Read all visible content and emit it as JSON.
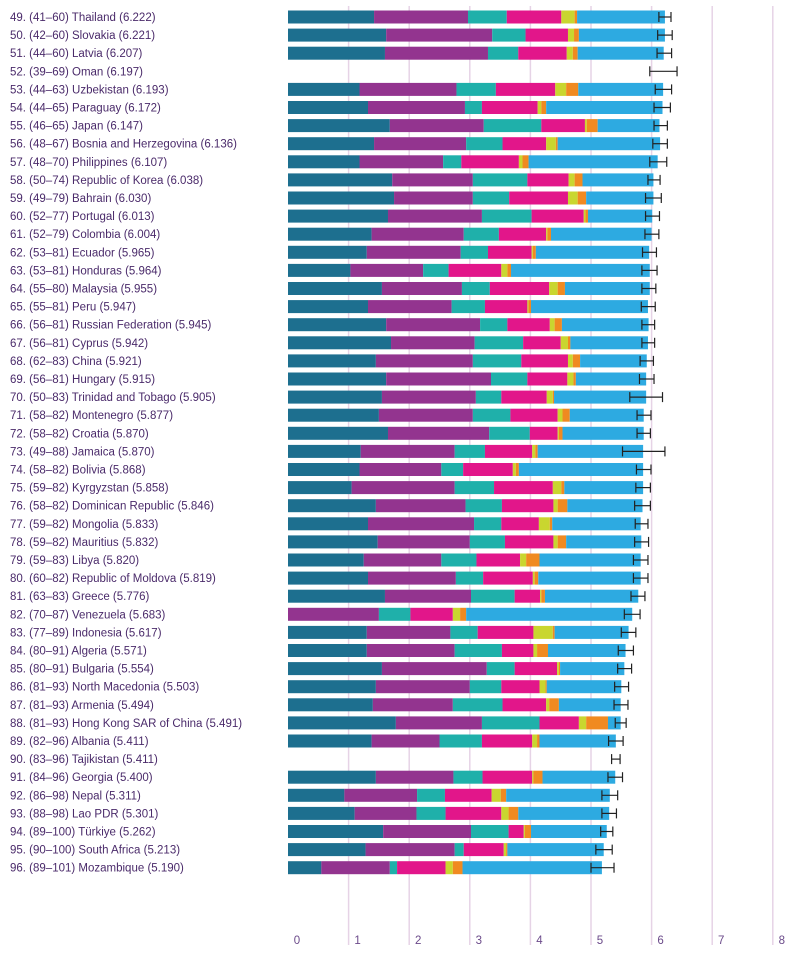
{
  "colors": {
    "seg1": "#1d6f8f",
    "seg2": "#93348f",
    "seg3": "#1fb0aa",
    "seg4": "#e2168a",
    "seg5": "#c9d62f",
    "seg6": "#f08a21",
    "seg7": "#2daae1",
    "gridline": "#e6d3e6",
    "label_text": "#4a2a6a",
    "error_bar": "#222222"
  },
  "chart_data": {
    "type": "bar",
    "orientation": "horizontal",
    "stacked": true,
    "xlim": [
      0,
      8
    ],
    "x_ticks": [
      "0",
      "1",
      "2",
      "3",
      "4",
      "5",
      "6",
      "7",
      "8"
    ],
    "grid": true,
    "rows": [
      {
        "label": "49.  (41–60) Thailand (6.222)",
        "score": 6.222,
        "ci": [
          6.12,
          6.32
        ],
        "segments": [
          1.42,
          1.55,
          0.64,
          0.9,
          0.22,
          0.04,
          1.45
        ]
      },
      {
        "label": "50.  (42–60) Slovakia (6.221)",
        "score": 6.221,
        "ci": [
          6.1,
          6.34
        ],
        "segments": [
          1.62,
          1.75,
          0.55,
          0.7,
          0.1,
          0.08,
          1.42
        ]
      },
      {
        "label": "51.  (44–60) Latvia (6.207)",
        "score": 6.207,
        "ci": [
          6.09,
          6.33
        ],
        "segments": [
          1.6,
          1.7,
          0.5,
          0.8,
          0.1,
          0.08,
          1.42
        ]
      },
      {
        "label": "52.  (39–69) Oman (6.197)",
        "score": 6.197,
        "ci": [
          5.97,
          6.42
        ],
        "segments": []
      },
      {
        "label": "53.  (44–63) Uzbekistan (6.193)",
        "score": 6.193,
        "ci": [
          6.06,
          6.33
        ],
        "segments": [
          1.18,
          1.6,
          0.65,
          0.98,
          0.18,
          0.2,
          1.4
        ]
      },
      {
        "label": "54.  (44–65) Paraguay (6.172)",
        "score": 6.172,
        "ci": [
          6.04,
          6.31
        ],
        "segments": [
          1.32,
          1.6,
          0.28,
          0.92,
          0.06,
          0.08,
          1.92
        ]
      },
      {
        "label": "55.  (46–65) Japan (6.147)",
        "score": 6.147,
        "ci": [
          6.04,
          6.26
        ],
        "segments": [
          1.68,
          1.55,
          0.95,
          0.72,
          0.03,
          0.18,
          1.02
        ]
      },
      {
        "label": "56.  (48–67) Bosnia and Herzegovina (6.136)",
        "score": 6.136,
        "ci": [
          6.02,
          6.26
        ],
        "segments": [
          1.42,
          1.52,
          0.6,
          0.72,
          0.16,
          0.03,
          1.69
        ]
      },
      {
        "label": "57.  (48–70) Philippines (6.107)",
        "score": 6.107,
        "ci": [
          5.97,
          6.25
        ],
        "segments": [
          1.18,
          1.38,
          0.3,
          0.95,
          0.06,
          0.1,
          2.13
        ]
      },
      {
        "label": "58.  (50–74) Republic of Korea (6.038)",
        "score": 6.038,
        "ci": [
          5.94,
          6.14
        ],
        "segments": [
          1.72,
          1.33,
          0.9,
          0.68,
          0.1,
          0.13,
          1.17
        ]
      },
      {
        "label": "59.  (49–79) Bahrain (6.030)",
        "score": 6.03,
        "ci": [
          5.9,
          6.16
        ],
        "segments": [
          1.75,
          1.3,
          0.6,
          0.97,
          0.16,
          0.14,
          1.11
        ]
      },
      {
        "label": "60.  (52–77) Portugal (6.013)",
        "score": 6.013,
        "ci": [
          5.9,
          6.13
        ],
        "segments": [
          1.65,
          1.55,
          0.82,
          0.86,
          0.03,
          0.04,
          1.06
        ]
      },
      {
        "label": "61.  (52–79) Colombia (6.004)",
        "score": 6.004,
        "ci": [
          5.89,
          6.12
        ],
        "segments": [
          1.38,
          1.52,
          0.58,
          0.78,
          0.02,
          0.06,
          1.66
        ]
      },
      {
        "label": "62.  (53–81) Ecuador (5.965)",
        "score": 5.965,
        "ci": [
          5.85,
          6.08
        ],
        "segments": [
          1.3,
          1.55,
          0.45,
          0.72,
          0.02,
          0.05,
          1.87
        ]
      },
      {
        "label": "63.  (53–81) Honduras (5.964)",
        "score": 5.964,
        "ci": [
          5.84,
          6.09
        ],
        "segments": [
          1.03,
          1.2,
          0.42,
          0.87,
          0.1,
          0.06,
          2.29
        ]
      },
      {
        "label": "64.  (55–80) Malaysia (5.955)",
        "score": 5.955,
        "ci": [
          5.84,
          6.07
        ],
        "segments": [
          1.55,
          1.32,
          0.46,
          0.98,
          0.14,
          0.12,
          1.4
        ]
      },
      {
        "label": "65.  (55–81) Peru (5.947)",
        "score": 5.947,
        "ci": [
          5.83,
          6.06
        ],
        "segments": [
          1.32,
          1.38,
          0.55,
          0.7,
          0.02,
          0.04,
          1.93
        ]
      },
      {
        "label": "66.  (56–81) Russian Federation (5.945)",
        "score": 5.945,
        "ci": [
          5.84,
          6.05
        ],
        "segments": [
          1.62,
          1.55,
          0.45,
          0.7,
          0.08,
          0.12,
          1.43
        ]
      },
      {
        "label": "67.  (56–81) Cyprus (5.942)",
        "score": 5.942,
        "ci": [
          5.84,
          6.05
        ],
        "segments": [
          1.7,
          1.38,
          0.8,
          0.62,
          0.12,
          0.04,
          1.28
        ]
      },
      {
        "label": "68.  (62–83) China (5.921)",
        "score": 5.921,
        "ci": [
          5.81,
          6.03
        ],
        "segments": [
          1.45,
          1.6,
          0.8,
          0.77,
          0.08,
          0.12,
          1.1
        ]
      },
      {
        "label": "69.  (56–81) Hungary (5.915)",
        "score": 5.915,
        "ci": [
          5.8,
          6.04
        ],
        "segments": [
          1.62,
          1.73,
          0.6,
          0.66,
          0.1,
          0.04,
          1.16
        ]
      },
      {
        "label": "70.  (50–83) Trinidad and Tobago (5.905)",
        "score": 5.905,
        "ci": [
          5.64,
          6.18
        ],
        "segments": [
          1.55,
          1.55,
          0.42,
          0.75,
          0.1,
          0.02,
          1.52
        ]
      },
      {
        "label": "71.  (58–82) Montenegro (5.877)",
        "score": 5.877,
        "ci": [
          5.76,
          5.99
        ],
        "segments": [
          1.5,
          1.55,
          0.62,
          0.78,
          0.08,
          0.12,
          1.22
        ]
      },
      {
        "label": "72.  (58–82) Croatia (5.870)",
        "score": 5.87,
        "ci": [
          5.76,
          5.98
        ],
        "segments": [
          1.65,
          1.67,
          0.67,
          0.46,
          0.02,
          0.06,
          1.34
        ]
      },
      {
        "label": "73.  (49–88) Jamaica (5.870)",
        "score": 5.87,
        "ci": [
          5.52,
          6.22
        ],
        "segments": [
          1.2,
          1.55,
          0.5,
          0.78,
          0.05,
          0.04,
          1.74
        ]
      },
      {
        "label": "74.  (58–82) Bolivia (5.868)",
        "score": 5.868,
        "ci": [
          5.75,
          5.99
        ],
        "segments": [
          1.18,
          1.35,
          0.36,
          0.82,
          0.05,
          0.05,
          2.05
        ]
      },
      {
        "label": "75.  (59–82) Kyrgyzstan (5.858)",
        "score": 5.858,
        "ci": [
          5.74,
          5.98
        ],
        "segments": [
          1.05,
          1.7,
          0.65,
          0.97,
          0.14,
          0.05,
          1.3
        ]
      },
      {
        "label": "76.  (58–82) Dominican Republic (5.846)",
        "score": 5.846,
        "ci": [
          5.72,
          5.98
        ],
        "segments": [
          1.45,
          1.48,
          0.6,
          0.85,
          0.07,
          0.16,
          1.24
        ]
      },
      {
        "label": "77.  (59–82) Mongolia (5.833)",
        "score": 5.833,
        "ci": [
          5.73,
          5.94
        ],
        "segments": [
          1.32,
          1.75,
          0.45,
          0.62,
          0.18,
          0.04,
          1.46
        ]
      },
      {
        "label": "78.  (59–82) Mauritius (5.832)",
        "score": 5.832,
        "ci": [
          5.72,
          5.95
        ],
        "segments": [
          1.48,
          1.52,
          0.58,
          0.8,
          0.07,
          0.14,
          1.24
        ]
      },
      {
        "label": "79.  (59–83) Libya (5.820)",
        "score": 5.82,
        "ci": [
          5.7,
          5.94
        ],
        "segments": [
          1.25,
          1.28,
          0.58,
          0.72,
          0.1,
          0.22,
          1.67
        ]
      },
      {
        "label": "80.  (60–82) Republic of Moldova (5.819)",
        "score": 5.819,
        "ci": [
          5.7,
          5.94
        ],
        "segments": [
          1.32,
          1.45,
          0.45,
          0.82,
          0.03,
          0.06,
          1.69
        ]
      },
      {
        "label": "81.  (63–83) Greece (5.776)",
        "score": 5.776,
        "ci": [
          5.66,
          5.89
        ],
        "segments": [
          1.6,
          1.42,
          0.72,
          0.42,
          0.02,
          0.06,
          1.54
        ]
      },
      {
        "label": "82.  (70–87) Venezuela (5.683)",
        "score": 5.683,
        "ci": [
          5.55,
          5.81
        ],
        "segments": [
          0.0,
          1.5,
          0.52,
          0.7,
          0.12,
          0.1,
          2.74
        ]
      },
      {
        "label": "83.  (77–89) Indonesia (5.617)",
        "score": 5.617,
        "ci": [
          5.5,
          5.74
        ],
        "segments": [
          1.3,
          1.38,
          0.45,
          0.92,
          0.32,
          0.03,
          1.22
        ]
      },
      {
        "label": "84.  (80–91) Algeria (5.571)",
        "score": 5.571,
        "ci": [
          5.45,
          5.7
        ],
        "segments": [
          1.3,
          1.45,
          0.78,
          0.52,
          0.06,
          0.18,
          1.28
        ]
      },
      {
        "label": "85.  (80–91) Bulgaria (5.554)",
        "score": 5.554,
        "ci": [
          5.44,
          5.67
        ],
        "segments": [
          1.55,
          1.73,
          0.46,
          0.7,
          0.03,
          0.02,
          1.06
        ]
      },
      {
        "label": "86.  (81–93) North Macedonia (5.503)",
        "score": 5.503,
        "ci": [
          5.39,
          5.62
        ],
        "segments": [
          1.45,
          1.55,
          0.52,
          0.63,
          0.1,
          0.02,
          1.23
        ]
      },
      {
        "label": "87.  (81–93) Armenia (5.494)",
        "score": 5.494,
        "ci": [
          5.38,
          5.61
        ],
        "segments": [
          1.4,
          1.32,
          0.82,
          0.72,
          0.05,
          0.16,
          1.02
        ]
      },
      {
        "label": "88.  (81–93) Hong Kong SAR of China (5.491)",
        "score": 5.491,
        "ci": [
          5.4,
          5.58
        ],
        "segments": [
          1.78,
          1.42,
          0.95,
          0.65,
          0.12,
          0.36,
          0.21
        ]
      },
      {
        "label": "89.  (82–96) Albania (5.411)",
        "score": 5.411,
        "ci": [
          5.29,
          5.53
        ],
        "segments": [
          1.38,
          1.12,
          0.7,
          0.83,
          0.08,
          0.04,
          1.26
        ]
      },
      {
        "label": "90.  (83–96) Tajikistan (5.411)",
        "score": 5.411,
        "ci": [
          5.34,
          5.48
        ],
        "segments": []
      },
      {
        "label": "91.  (84–96) Georgia (5.400)",
        "score": 5.4,
        "ci": [
          5.28,
          5.52
        ],
        "segments": [
          1.45,
          1.28,
          0.48,
          0.82,
          0.02,
          0.15,
          1.2
        ]
      },
      {
        "label": "92.  (86–98) Nepal (5.311)",
        "score": 5.311,
        "ci": [
          5.18,
          5.44
        ],
        "segments": [
          0.93,
          1.2,
          0.46,
          0.77,
          0.15,
          0.09,
          1.71
        ]
      },
      {
        "label": "93.  (88–98) Lao PDR (5.301)",
        "score": 5.301,
        "ci": [
          5.18,
          5.42
        ],
        "segments": [
          1.1,
          1.02,
          0.48,
          0.92,
          0.12,
          0.16,
          1.5
        ]
      },
      {
        "label": "94.  (89–100) Türkiye (5.262)",
        "score": 5.262,
        "ci": [
          5.16,
          5.36
        ],
        "segments": [
          1.57,
          1.45,
          0.62,
          0.25,
          0.02,
          0.1,
          1.25
        ]
      },
      {
        "label": "95.  (90–100) South Africa (5.213)",
        "score": 5.213,
        "ci": [
          5.08,
          5.35
        ],
        "segments": [
          1.28,
          1.47,
          0.15,
          0.66,
          0.04,
          0.02,
          1.59
        ]
      },
      {
        "label": "96.  (89–101) Mozambique (5.190)",
        "score": 5.19,
        "ci": [
          5.0,
          5.38
        ],
        "segments": [
          0.55,
          1.13,
          0.12,
          0.8,
          0.12,
          0.16,
          2.3
        ]
      }
    ]
  }
}
